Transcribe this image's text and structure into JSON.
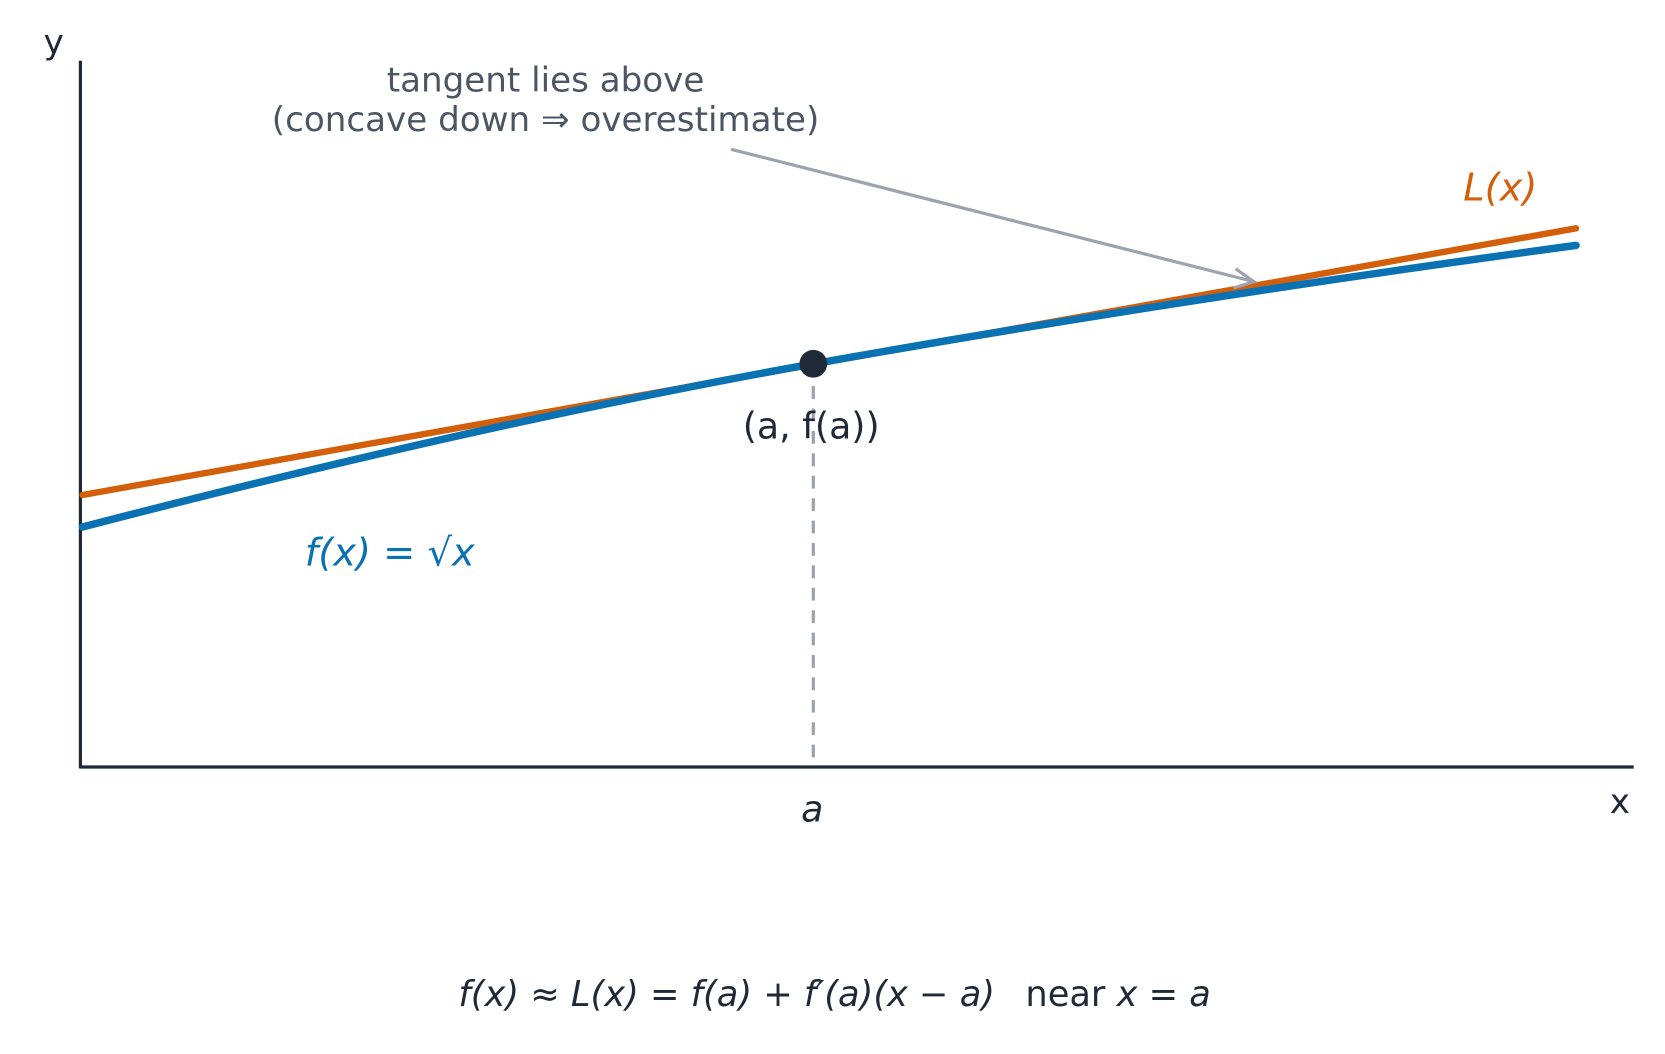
{
  "axes": {
    "y_label": "y",
    "x_label": "x",
    "a_label": "a"
  },
  "annotation": {
    "line1": "tangent lies above",
    "line2": "(concave down ⇒ overestimate)"
  },
  "labels": {
    "tangent": "L(x)",
    "point": "(a, f(a))",
    "function": "f(x) = √x"
  },
  "formula": {
    "math": "f(x) ≈ L(x) = f(a) + f′(a)(x − a)",
    "word": "near",
    "condition": "x = a"
  }
}
